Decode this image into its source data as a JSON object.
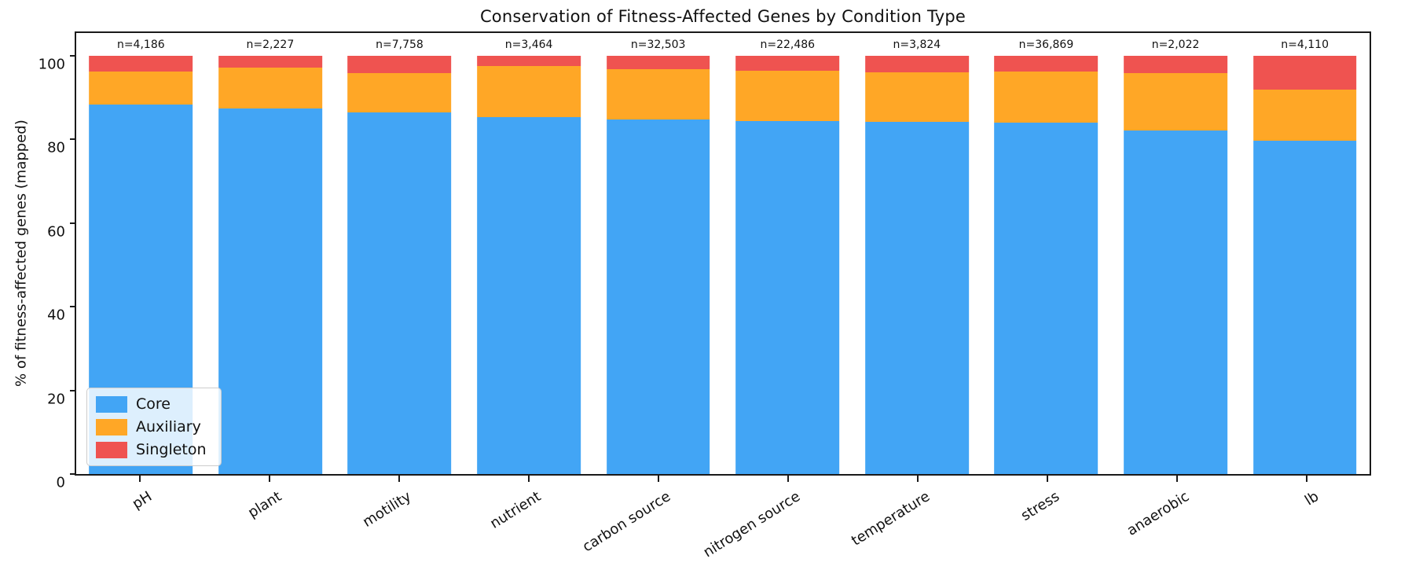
{
  "title": "Conservation of Fitness-Affected Genes by Condition Type",
  "ylabel": "% of fitness-affected genes (mapped)",
  "colors": {
    "core": "#42A5F5",
    "auxiliary": "#FFA726",
    "singleton": "#EF5350",
    "spine": "#1a1a1a"
  },
  "legend": {
    "position": "lower left",
    "entries": [
      "Core",
      "Auxiliary",
      "Singleton"
    ]
  },
  "chart_data": {
    "type": "bar",
    "stacked": true,
    "title": "Conservation of Fitness-Affected Genes by Condition Type",
    "xlabel": "",
    "ylabel": "% of fitness-affected genes (mapped)",
    "ylim": [
      0,
      106
    ],
    "y_ticks": [
      0,
      20,
      40,
      60,
      80,
      100
    ],
    "grid": false,
    "legend_position": "lower left",
    "categories": [
      "pH",
      "plant",
      "motility",
      "nutrient",
      "carbon source",
      "nitrogen source",
      "temperature",
      "stress",
      "anaerobic",
      "lb"
    ],
    "bar_labels": [
      "n=4,186",
      "n=2,227",
      "n=7,758",
      "n=3,464",
      "n=32,503",
      "n=22,486",
      "n=3,824",
      "n=36,869",
      "n=2,022",
      "n=4,110"
    ],
    "series": [
      {
        "name": "Core",
        "color": "#42A5F5",
        "values": [
          88.3,
          87.5,
          86.5,
          85.3,
          84.7,
          84.5,
          84.3,
          84.0,
          82.1,
          79.8
        ]
      },
      {
        "name": "Auxiliary",
        "color": "#FFA726",
        "values": [
          8.0,
          9.6,
          9.4,
          12.2,
          12.1,
          11.9,
          11.7,
          12.2,
          13.8,
          12.1
        ]
      },
      {
        "name": "Singleton",
        "color": "#EF5350",
        "values": [
          3.7,
          2.9,
          4.1,
          2.5,
          3.2,
          3.6,
          4.0,
          3.8,
          4.1,
          8.1
        ]
      }
    ]
  }
}
